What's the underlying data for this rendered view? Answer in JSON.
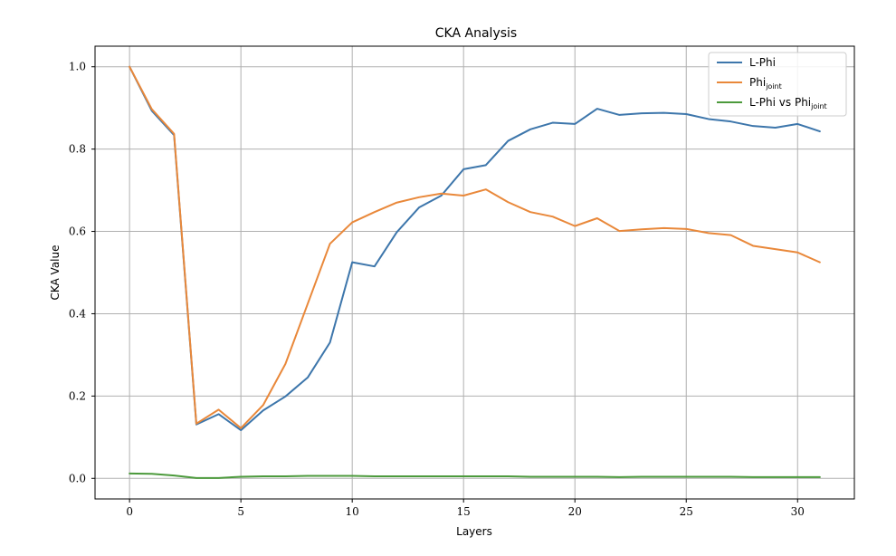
{
  "chart_data": {
    "type": "line",
    "title": "CKA Analysis",
    "xlabel": "Layers",
    "ylabel": "CKA Value",
    "xlim": [
      -1.55,
      32.55
    ],
    "ylim": [
      -0.05,
      1.05
    ],
    "xticks": [
      0,
      5,
      10,
      15,
      20,
      25,
      30
    ],
    "yticks": [
      0.0,
      0.2,
      0.4,
      0.6,
      0.8,
      1.0
    ],
    "xtick_labels": [
      "0",
      "5",
      "10",
      "15",
      "20",
      "25",
      "30"
    ],
    "ytick_labels": [
      "0.0",
      "0.2",
      "0.4",
      "0.6",
      "0.8",
      "1.0"
    ],
    "grid": true,
    "legend_position": "top-right",
    "x": [
      0,
      1,
      2,
      3,
      4,
      5,
      6,
      7,
      8,
      9,
      10,
      11,
      12,
      13,
      14,
      15,
      16,
      17,
      18,
      19,
      20,
      21,
      22,
      23,
      24,
      25,
      26,
      27,
      28,
      29,
      30,
      31
    ],
    "series": [
      {
        "name": "L-Phi",
        "legend_main": "L-Phi",
        "legend_sub": "",
        "legend_tail": "",
        "color": "#3d76ab",
        "values": [
          1.0,
          0.893,
          0.834,
          0.131,
          0.156,
          0.117,
          0.165,
          0.199,
          0.245,
          0.33,
          0.525,
          0.515,
          0.598,
          0.658,
          0.687,
          0.751,
          0.761,
          0.82,
          0.848,
          0.864,
          0.861,
          0.898,
          0.883,
          0.887,
          0.888,
          0.885,
          0.873,
          0.867,
          0.856,
          0.852,
          0.861,
          0.843
        ]
      },
      {
        "name": "Phi_joint",
        "legend_main": "Phi",
        "legend_sub": "joint",
        "legend_tail": "",
        "color": "#e9883a",
        "values": [
          1.0,
          0.897,
          0.837,
          0.133,
          0.167,
          0.122,
          0.178,
          0.278,
          0.424,
          0.57,
          0.622,
          0.647,
          0.67,
          0.683,
          0.692,
          0.687,
          0.702,
          0.671,
          0.647,
          0.636,
          0.613,
          0.632,
          0.601,
          0.605,
          0.608,
          0.606,
          0.596,
          0.591,
          0.565,
          0.557,
          0.549,
          0.525
        ]
      },
      {
        "name": "L-Phi vs Phi_joint",
        "legend_main": "L-Phi vs Phi",
        "legend_sub": "joint",
        "legend_tail": "",
        "color": "#4c9a3c",
        "values": [
          0.012,
          0.011,
          0.007,
          0.001,
          0.001,
          0.004,
          0.005,
          0.005,
          0.006,
          0.006,
          0.006,
          0.005,
          0.005,
          0.005,
          0.005,
          0.005,
          0.005,
          0.005,
          0.004,
          0.004,
          0.004,
          0.004,
          0.003,
          0.004,
          0.004,
          0.004,
          0.004,
          0.004,
          0.003,
          0.003,
          0.003,
          0.003
        ]
      }
    ]
  }
}
